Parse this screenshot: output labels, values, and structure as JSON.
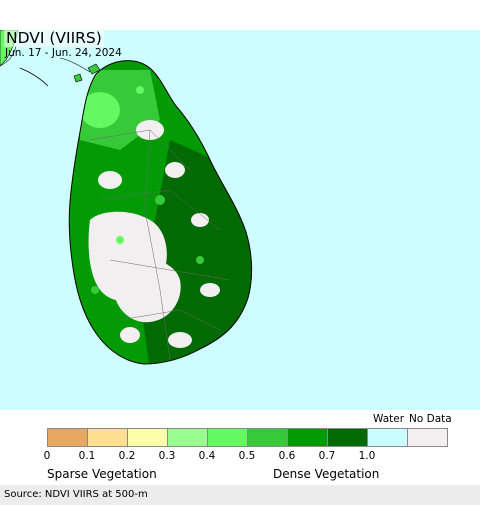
{
  "title": "NDVI (VIIRS)",
  "date_range": "Jun. 17 - Jun. 24, 2024",
  "legend": {
    "swatches": [
      {
        "color": "#e8a862"
      },
      {
        "color": "#fedf8f"
      },
      {
        "color": "#fafdaa"
      },
      {
        "color": "#9afc8e"
      },
      {
        "color": "#64f861"
      },
      {
        "color": "#37c93a"
      },
      {
        "color": "#029b05"
      },
      {
        "color": "#016a03"
      },
      {
        "color": "#cafdfd"
      },
      {
        "color": "#f1eff0"
      }
    ],
    "ticks": [
      "0",
      "0.1",
      "0.2",
      "0.3",
      "0.4",
      "0.5",
      "0.6",
      "0.7",
      "1.0"
    ],
    "water_label": "Water",
    "nodata_label": "No Data",
    "sparse_label": "Sparse Vegetation",
    "dense_label": "Dense Vegetation"
  },
  "source": "Source: NDVI VIIRS at 500-m"
}
